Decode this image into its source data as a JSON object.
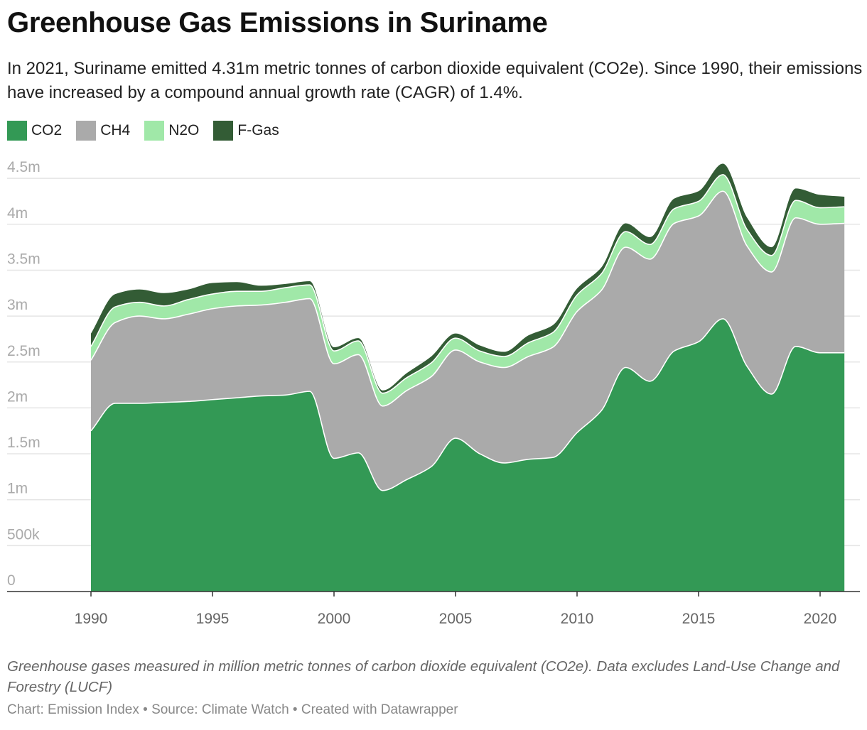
{
  "title": "Greenhouse Gas Emissions in Suriname",
  "subtitle": "In 2021, Suriname emitted 4.31m metric tonnes of carbon dioxide equivalent (CO2e). Since 1990, their emissions have increased by a compound annual growth rate (CAGR) of 1.4%.",
  "notes": "Greenhouse gases measured in million metric tonnes of carbon dioxide equivalent (CO2e). Data excludes Land-Use Change and Forestry (LUCF)",
  "credits": "Chart: Emission Index • Source: Climate Watch • Created with Datawrapper",
  "colors": {
    "CO2": "#339955",
    "CH4": "#aaaaaa",
    "N2O": "#a0e8a8",
    "F-Gas": "#335c35",
    "separator": "#ffffff",
    "grid": "#e5e5e5",
    "axis": "#333333"
  },
  "chart_data": {
    "type": "area",
    "stacked": true,
    "x": [
      1990,
      1991,
      1992,
      1993,
      1994,
      1995,
      1996,
      1997,
      1998,
      1999,
      2000,
      2001,
      2002,
      2003,
      2004,
      2005,
      2006,
      2007,
      2008,
      2009,
      2010,
      2011,
      2012,
      2013,
      2014,
      2015,
      2016,
      2017,
      2018,
      2019,
      2020,
      2021
    ],
    "series": [
      {
        "name": "CO2",
        "values": [
          1.75,
          2.05,
          2.05,
          2.06,
          2.07,
          2.09,
          2.11,
          2.13,
          2.14,
          2.18,
          1.45,
          1.51,
          1.1,
          1.22,
          1.36,
          1.67,
          1.5,
          1.4,
          1.44,
          1.46,
          1.73,
          1.97,
          2.44,
          2.29,
          2.62,
          2.72,
          2.97,
          2.45,
          2.15,
          2.67,
          2.6,
          2.6
        ]
      },
      {
        "name": "CH4",
        "values": [
          0.77,
          0.88,
          0.95,
          0.91,
          0.95,
          0.99,
          1.0,
          0.99,
          1.01,
          1.01,
          1.03,
          1.07,
          0.92,
          0.97,
          0.98,
          0.96,
          1.0,
          1.04,
          1.12,
          1.2,
          1.32,
          1.31,
          1.31,
          1.33,
          1.39,
          1.37,
          1.39,
          1.31,
          1.33,
          1.4,
          1.4,
          1.41
        ]
      },
      {
        "name": "N2O",
        "values": [
          0.15,
          0.17,
          0.15,
          0.14,
          0.16,
          0.16,
          0.16,
          0.15,
          0.16,
          0.15,
          0.14,
          0.15,
          0.14,
          0.14,
          0.15,
          0.13,
          0.12,
          0.12,
          0.15,
          0.16,
          0.18,
          0.18,
          0.17,
          0.16,
          0.16,
          0.16,
          0.18,
          0.18,
          0.18,
          0.19,
          0.18,
          0.18
        ]
      },
      {
        "name": "F-Gas",
        "values": [
          0.14,
          0.14,
          0.14,
          0.14,
          0.11,
          0.12,
          0.1,
          0.06,
          0.04,
          0.04,
          0.04,
          0.03,
          0.03,
          0.05,
          0.07,
          0.05,
          0.06,
          0.05,
          0.08,
          0.08,
          0.07,
          0.07,
          0.09,
          0.08,
          0.11,
          0.11,
          0.12,
          0.13,
          0.09,
          0.13,
          0.14,
          0.11
        ]
      }
    ],
    "y_ticks": [
      0,
      0.5,
      1,
      1.5,
      2,
      2.5,
      3,
      3.5,
      4,
      4.5
    ],
    "y_tick_labels": [
      "0",
      "500k",
      "1m",
      "1.5m",
      "2m",
      "2.5m",
      "3m",
      "3.5m",
      "4m",
      "4.5m"
    ],
    "x_ticks": [
      1990,
      1995,
      2000,
      2005,
      2010,
      2015,
      2020
    ],
    "ylim": [
      0,
      4.65
    ],
    "xlim": [
      1987.9,
      1221.0
    ],
    "grid": true,
    "legend_position": "top-left"
  }
}
